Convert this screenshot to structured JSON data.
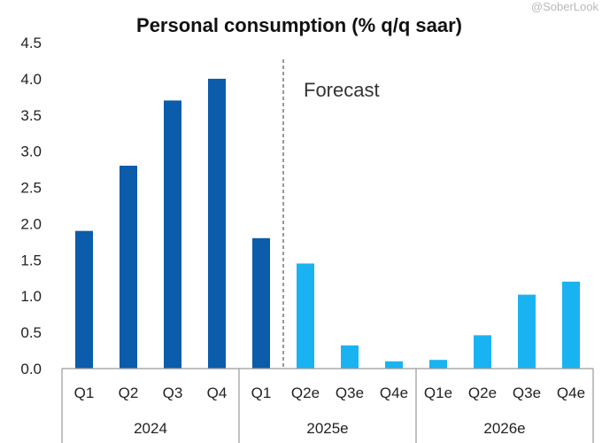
{
  "watermark": "@SoberLook",
  "chart_data": {
    "type": "bar",
    "title": "Personal consumption (% q/q saar)",
    "xlabel": "",
    "ylabel": "",
    "ylim": [
      0,
      4.5
    ],
    "yticks": [
      "0.0",
      "0.5",
      "1.0",
      "1.5",
      "2.0",
      "2.5",
      "3.0",
      "3.5",
      "4.0",
      "4.5"
    ],
    "grid": false,
    "categories": [
      "Q1",
      "Q2",
      "Q3",
      "Q4",
      "Q1",
      "Q2e",
      "Q3e",
      "Q4e",
      "Q1e",
      "Q2e",
      "Q3e",
      "Q4e"
    ],
    "values": [
      1.9,
      2.8,
      3.7,
      4.0,
      1.8,
      1.45,
      0.32,
      0.1,
      0.12,
      0.46,
      1.02,
      1.2
    ],
    "actual_color": "#0b5cab",
    "forecast_color": "#1ab3f2",
    "forecast_start_index": 5,
    "year_groups": [
      {
        "label": "2024",
        "start": 0,
        "end": 3
      },
      {
        "label": "2025e",
        "start": 4,
        "end": 7
      },
      {
        "label": "2026e",
        "start": 8,
        "end": 11
      }
    ],
    "annotation": "Forecast"
  }
}
